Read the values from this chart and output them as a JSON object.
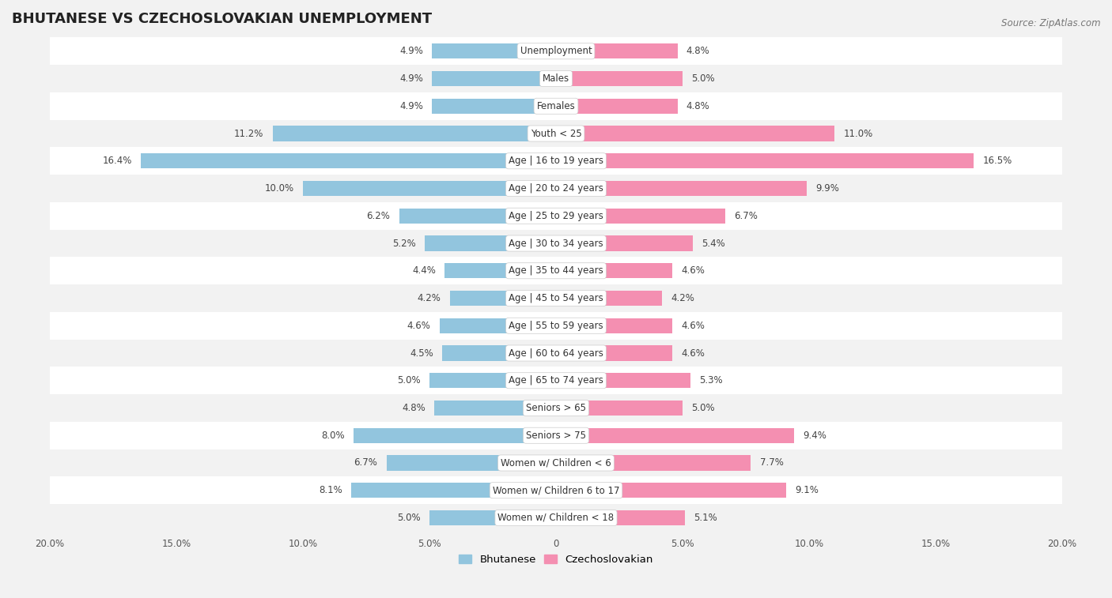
{
  "title": "BHUTANESE VS CZECHOSLOVAKIAN UNEMPLOYMENT",
  "source": "Source: ZipAtlas.com",
  "categories": [
    "Unemployment",
    "Males",
    "Females",
    "Youth < 25",
    "Age | 16 to 19 years",
    "Age | 20 to 24 years",
    "Age | 25 to 29 years",
    "Age | 30 to 34 years",
    "Age | 35 to 44 years",
    "Age | 45 to 54 years",
    "Age | 55 to 59 years",
    "Age | 60 to 64 years",
    "Age | 65 to 74 years",
    "Seniors > 65",
    "Seniors > 75",
    "Women w/ Children < 6",
    "Women w/ Children 6 to 17",
    "Women w/ Children < 18"
  ],
  "bhutanese": [
    4.9,
    4.9,
    4.9,
    11.2,
    16.4,
    10.0,
    6.2,
    5.2,
    4.4,
    4.2,
    4.6,
    4.5,
    5.0,
    4.8,
    8.0,
    6.7,
    8.1,
    5.0
  ],
  "czechoslovakian": [
    4.8,
    5.0,
    4.8,
    11.0,
    16.5,
    9.9,
    6.7,
    5.4,
    4.6,
    4.2,
    4.6,
    4.6,
    5.3,
    5.0,
    9.4,
    7.7,
    9.1,
    5.1
  ],
  "blue_color": "#92c5de",
  "pink_color": "#f48fb1",
  "bg_color": "#f2f2f2",
  "row_odd_color": "#f2f2f2",
  "row_even_color": "#ffffff",
  "max_val": 20.0,
  "title_fontsize": 13,
  "label_fontsize": 8.5,
  "value_fontsize": 8.5,
  "legend_fontsize": 9.5,
  "source_fontsize": 8.5,
  "xtick_fontsize": 8.5
}
